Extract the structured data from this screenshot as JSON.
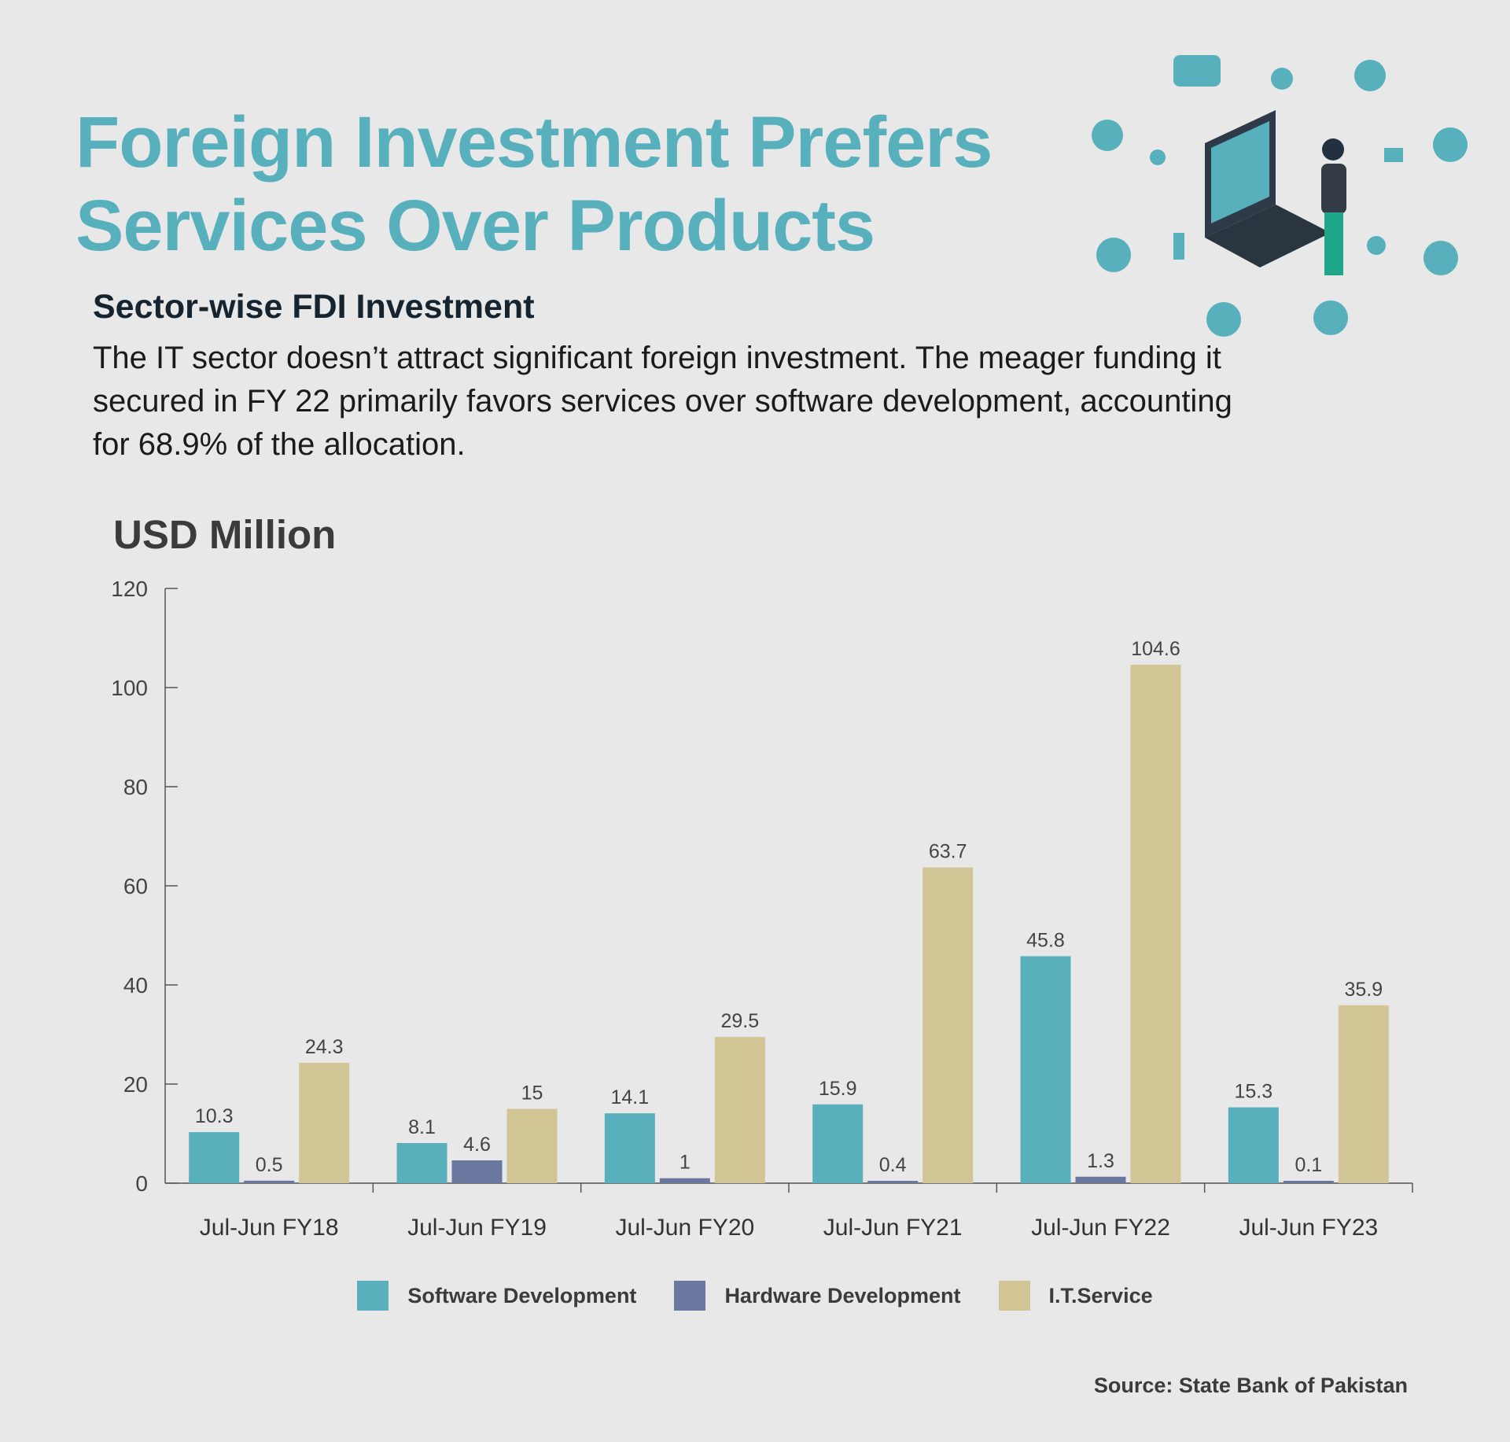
{
  "title_line1": "Foreign Investment Prefers",
  "title_line2": "Services Over Products",
  "subtitle": "Sector-wise FDI Investment",
  "description": "The IT sector doesn’t attract significant foreign investment. The meager funding it secured in FY 22 primarily favors services over software development, accounting for 68.9% of the allocation.",
  "source": "Source: State Bank of Pakistan",
  "colors": {
    "title": "#58b0bd",
    "software": "#5aafbc",
    "hardware": "#6a78a0",
    "service": "#d1c595"
  },
  "chart_data": {
    "type": "bar",
    "ylabel": "USD Million",
    "ylim": [
      0,
      120
    ],
    "yticks": [
      0,
      20,
      40,
      60,
      80,
      100,
      120
    ],
    "categories": [
      "Jul-Jun FY18",
      "Jul-Jun FY19",
      "Jul-Jun FY20",
      "Jul-Jun FY21",
      "Jul-Jun FY22",
      "Jul-Jun FY23"
    ],
    "series": [
      {
        "name": "Software Development",
        "color": "#5aafbc",
        "values": [
          10.3,
          8.1,
          14.1,
          15.9,
          45.8,
          15.3
        ]
      },
      {
        "name": "Hardware Development",
        "color": "#6a78a0",
        "values": [
          0.5,
          4.6,
          1,
          0.4,
          1.3,
          0.1
        ]
      },
      {
        "name": "I.T.Service",
        "color": "#d1c595",
        "values": [
          24.3,
          15,
          29.5,
          63.7,
          104.6,
          35.9
        ]
      }
    ],
    "legend_position": "bottom",
    "grid": false
  }
}
